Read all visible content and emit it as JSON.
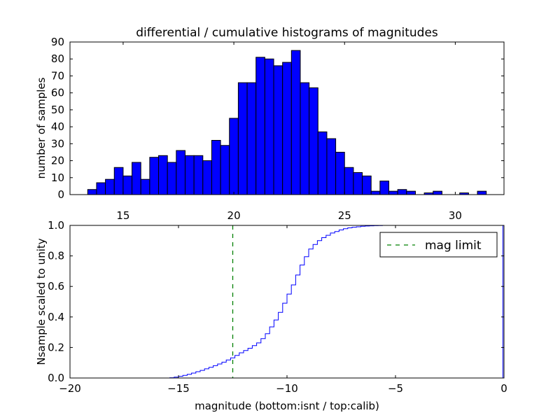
{
  "chart_data": [
    {
      "type": "bar",
      "title": "differential / cumulative histograms of magnitudes",
      "xlabel": "",
      "ylabel": "number of samples",
      "xlim": [
        12.6,
        32.2
      ],
      "ylim": [
        0,
        90
      ],
      "xticks": [
        15,
        20,
        25,
        30
      ],
      "yticks": [
        0,
        10,
        20,
        30,
        40,
        50,
        60,
        70,
        80,
        90
      ],
      "bin_width": 0.4,
      "bin_starts": [
        13.0,
        13.4,
        13.8,
        14.2,
        14.6,
        15.0,
        15.4,
        15.8,
        16.2,
        16.6,
        17.0,
        17.4,
        17.8,
        18.2,
        18.6,
        19.0,
        19.4,
        19.8,
        20.2,
        20.6,
        21.0,
        21.4,
        21.8,
        22.2,
        22.6,
        23.0,
        23.4,
        23.8,
        24.2,
        24.6,
        25.0,
        25.4,
        25.8,
        26.2,
        26.6,
        27.0,
        27.4,
        27.8,
        28.2,
        28.6,
        29.0,
        29.4,
        29.8,
        30.2,
        30.6,
        31.0,
        31.4,
        31.8
      ],
      "values": [
        0,
        3,
        7,
        9,
        16,
        11,
        19,
        9,
        22,
        23,
        19,
        26,
        23,
        23,
        20,
        32,
        29,
        45,
        66,
        66,
        81,
        80,
        76,
        78,
        85,
        66,
        63,
        37,
        33,
        25,
        16,
        13,
        11,
        2,
        8,
        2,
        3,
        2,
        0,
        1,
        2,
        0,
        0,
        1,
        0,
        2,
        0,
        0
      ],
      "bar_color": "#0000ff"
    },
    {
      "type": "line",
      "xlabel": "magnitude (bottom:isnt / top:calib)",
      "ylabel": "Nsample scaled to unity",
      "xlim": [
        -20,
        0
      ],
      "ylim": [
        0,
        1.0
      ],
      "xticks": [
        -20,
        -15,
        -10,
        -5,
        0
      ],
      "xtick_labels": [
        "−20",
        "−15",
        "−10",
        "−5",
        "0"
      ],
      "yticks": [
        0.0,
        0.2,
        0.4,
        0.6,
        0.8,
        1.0
      ],
      "ytick_labels": [
        "0.0",
        "0.2",
        "0.4",
        "0.6",
        "0.8",
        "1.0"
      ],
      "series": [
        {
          "name": "cumulative",
          "style": "steps",
          "color": "#0000ff",
          "x": [
            -20.0,
            -15.4,
            -15.2,
            -15.0,
            -14.8,
            -14.6,
            -14.4,
            -14.2,
            -14.0,
            -13.8,
            -13.6,
            -13.4,
            -13.2,
            -13.0,
            -12.8,
            -12.6,
            -12.4,
            -12.2,
            -12.0,
            -11.8,
            -11.6,
            -11.4,
            -11.2,
            -11.0,
            -10.8,
            -10.6,
            -10.4,
            -10.2,
            -10.0,
            -9.8,
            -9.6,
            -9.4,
            -9.2,
            -9.0,
            -8.8,
            -8.6,
            -8.4,
            -8.2,
            -8.0,
            -7.8,
            -7.6,
            -7.4,
            -7.2,
            -7.0,
            -6.8,
            -6.6,
            -6.4,
            -6.2,
            -6.0,
            -5.8,
            -5.6,
            -5.4,
            -0.05
          ],
          "y": [
            0.0,
            0.002,
            0.006,
            0.011,
            0.017,
            0.024,
            0.032,
            0.041,
            0.05,
            0.06,
            0.07,
            0.081,
            0.092,
            0.104,
            0.118,
            0.132,
            0.148,
            0.165,
            0.18,
            0.195,
            0.212,
            0.23,
            0.258,
            0.29,
            0.335,
            0.38,
            0.43,
            0.49,
            0.55,
            0.61,
            0.675,
            0.74,
            0.795,
            0.845,
            0.875,
            0.9,
            0.92,
            0.935,
            0.95,
            0.96,
            0.97,
            0.978,
            0.984,
            0.988,
            0.991,
            0.994,
            0.996,
            0.997,
            0.998,
            0.999,
            1.0,
            1.0,
            1.0
          ]
        },
        {
          "name": "mag limit",
          "style": "dashed-vertical",
          "color": "#008000",
          "x_value": -12.5
        }
      ],
      "legend": {
        "label": "mag limit",
        "placement": "top-right"
      }
    }
  ]
}
